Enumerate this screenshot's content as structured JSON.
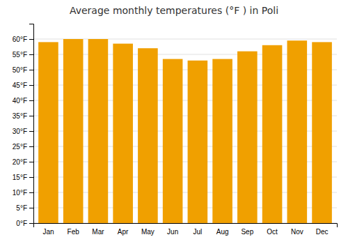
{
  "chart_data": {
    "type": "bar",
    "title": "Average monthly temperatures (°F ) in Poli",
    "categories": [
      "Jan",
      "Feb",
      "Mar",
      "Apr",
      "May",
      "Jun",
      "Jul",
      "Aug",
      "Sep",
      "Oct",
      "Nov",
      "Dec"
    ],
    "values": [
      59.0,
      60.0,
      60.0,
      58.5,
      57.0,
      53.5,
      53.0,
      53.5,
      56.0,
      58.0,
      59.5,
      59.0
    ],
    "color": "#F0A000",
    "ylim": [
      0,
      65
    ],
    "yticks": [
      {
        "value": 0,
        "label": "0°F"
      },
      {
        "value": 5,
        "label": "5°F"
      },
      {
        "value": 10,
        "label": "10°F"
      },
      {
        "value": 15,
        "label": "15°F"
      },
      {
        "value": 20,
        "label": "20°F"
      },
      {
        "value": 25,
        "label": "25°F"
      },
      {
        "value": 30,
        "label": "30°F"
      },
      {
        "value": 35,
        "label": "35°F"
      },
      {
        "value": 40,
        "label": "40°F"
      },
      {
        "value": 45,
        "label": "45°F"
      },
      {
        "value": 50,
        "label": "50°F"
      },
      {
        "value": 55,
        "label": "55°F"
      },
      {
        "value": 60,
        "label": "60°F"
      }
    ],
    "grid": true
  }
}
